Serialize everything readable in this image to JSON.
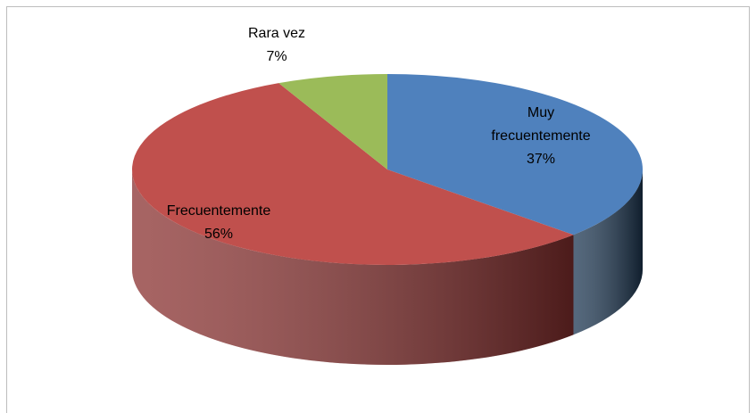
{
  "chart_data": {
    "type": "pie",
    "categories": [
      "Muy frecuentemente",
      "Frecuentemente",
      "Rara vez"
    ],
    "values": [
      37,
      56,
      7
    ],
    "value_labels": [
      "37%",
      "56%",
      "7%"
    ],
    "colors": [
      "#4f81bd",
      "#c0504d",
      "#9bbb59"
    ],
    "side_colors": [
      "#1d3752",
      "#8a3130",
      "#6a8a3a"
    ],
    "start_angle": 0,
    "direction": "clockwise",
    "3d": true
  }
}
